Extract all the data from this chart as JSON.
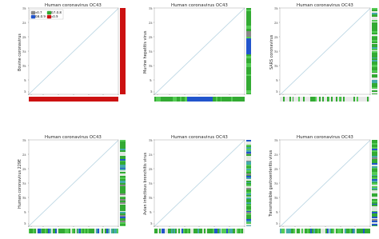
{
  "panels": [
    {
      "xlabel": "Human coronavirus OC43",
      "ylabel": "Bovine coronavirus",
      "has_legend": true
    },
    {
      "xlabel": "Human coronavirus OC43",
      "ylabel": "Murine hepatitis virus",
      "has_legend": false
    },
    {
      "xlabel": "Human coronavirus OC43",
      "ylabel": "SARS coronavirus",
      "has_legend": false
    },
    {
      "xlabel": "Human coronavirus OC43",
      "ylabel": "Human coronavirus 229E",
      "has_legend": false
    },
    {
      "xlabel": "Human coronavirus OC43",
      "ylabel": "Avian infectious bronchitis virus",
      "has_legend": false
    },
    {
      "xlabel": "Human coronavirus OC43",
      "ylabel": "Transmissible gastroenteritis virus",
      "has_legend": false
    }
  ],
  "legend_items": [
    {
      "label": "<0.7",
      "color": "#888888"
    },
    {
      "label": "0.8-0.9",
      "color": "#2255cc"
    },
    {
      "label": "0.7-0.8",
      "color": "#33aa33"
    },
    {
      "label": ">0.9",
      "color": "#cc1111"
    }
  ],
  "bg_color": "#ffffff",
  "diag_color": "#aaccdd",
  "panel_bg": "#ffffff",
  "tick_label_color": "#555555",
  "colorbar_seeds": [
    0,
    1,
    2,
    3,
    4,
    5
  ],
  "n_cb_segments": 60
}
